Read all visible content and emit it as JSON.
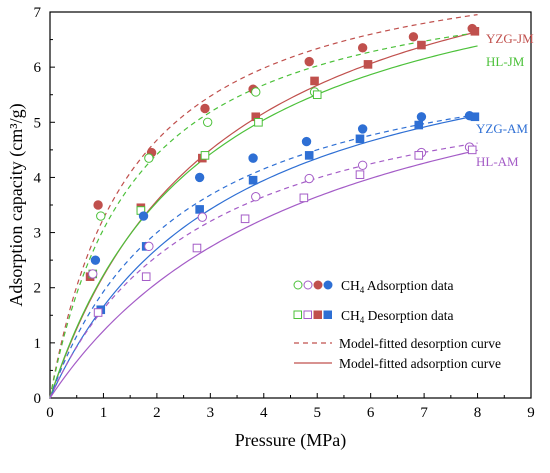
{
  "chart_data": {
    "type": "scatter",
    "xlabel": "Pressure (MPa)",
    "ylabel": "Adsorption capacity (cm³/g)",
    "xlim": [
      0,
      9
    ],
    "ylim": [
      0,
      7
    ],
    "xticks": [
      "0",
      "1",
      "2",
      "3",
      "4",
      "5",
      "6",
      "7",
      "8",
      "9"
    ],
    "yticks": [
      "0",
      "1",
      "2",
      "3",
      "4",
      "5",
      "6",
      "7"
    ],
    "grid": false,
    "legend_position": "bottom-right",
    "legend": [
      {
        "label_main": "CH",
        "label_sub": "4",
        "label_rest": " Adsorption data",
        "marker": "circle"
      },
      {
        "label_main": "CH",
        "label_sub": "4",
        "label_rest": " Desorption data",
        "marker": "square"
      },
      {
        "label_main": "Model-fitted desorption curve",
        "label_sub": "",
        "label_rest": "",
        "marker": "dashed-line"
      },
      {
        "label_main": "Model-fitted adsorption curve",
        "label_sub": "",
        "label_rest": "",
        "marker": "solid-line"
      }
    ],
    "series": [
      {
        "name": "YZG-JM",
        "color": "#c0504d",
        "adsorption_points": {
          "x": [
            0.9,
            1.9,
            2.9,
            3.8,
            4.85,
            5.85,
            6.8,
            7.9
          ],
          "y": [
            3.5,
            4.45,
            5.25,
            5.6,
            6.1,
            6.35,
            6.55,
            6.7
          ]
        },
        "desorption_points": {
          "x": [
            0.75,
            1.7,
            2.85,
            3.85,
            4.95,
            5.95,
            6.95,
            7.95
          ],
          "y": [
            2.2,
            3.45,
            4.35,
            5.1,
            5.75,
            6.05,
            6.4,
            6.65
          ]
        },
        "adsorption_fit": {
          "vl": 9.3,
          "pl": 3.2
        },
        "desorption_fit": {
          "vl": 8.3,
          "pl": 1.55
        }
      },
      {
        "name": "HL-JM",
        "color": "#4cc13a",
        "adsorption_points": {
          "x": [
            0.95,
            1.85,
            2.95,
            3.85,
            4.95
          ],
          "y": [
            3.3,
            4.35,
            5.0,
            5.55,
            5.55
          ]
        },
        "desorption_points": {
          "x": [
            0.8,
            1.7,
            2.9,
            3.9,
            5.0
          ],
          "y": [
            2.25,
            3.4,
            4.4,
            5.0,
            5.5
          ]
        },
        "adsorption_fit": {
          "vl": 8.7,
          "pl": 2.9
        },
        "desorption_fit": {
          "vl": 7.95,
          "pl": 1.6
        }
      },
      {
        "name": "YZG-AM",
        "color": "#2e6fd4",
        "adsorption_points": {
          "x": [
            0.85,
            1.75,
            2.8,
            3.8,
            4.8,
            5.85,
            6.95,
            7.85
          ],
          "y": [
            2.5,
            3.3,
            4.0,
            4.35,
            4.65,
            4.88,
            5.1,
            5.12
          ]
        },
        "desorption_points": {
          "x": [
            0.95,
            1.8,
            2.8,
            3.8,
            4.85,
            5.8,
            6.9,
            7.95
          ],
          "y": [
            1.6,
            2.75,
            3.42,
            3.95,
            4.4,
            4.7,
            4.95,
            5.1
          ]
        },
        "adsorption_fit": {
          "vl": 7.3,
          "pl": 3.4
        },
        "desorption_fit": {
          "vl": 6.75,
          "pl": 2.5
        }
      },
      {
        "name": "HL-AM",
        "color": "#a45cc7",
        "adsorption_points": {
          "x": [
            0.8,
            1.85,
            2.85,
            3.85,
            4.85,
            5.85,
            6.95,
            7.85
          ],
          "y": [
            2.25,
            2.75,
            3.28,
            3.65,
            3.98,
            4.22,
            4.45,
            4.55
          ]
        },
        "desorption_points": {
          "x": [
            0.9,
            1.8,
            2.75,
            3.65,
            4.75,
            5.8,
            6.9,
            7.9
          ],
          "y": [
            1.55,
            2.2,
            2.72,
            3.25,
            3.63,
            4.05,
            4.4,
            4.5
          ]
        },
        "adsorption_fit": {
          "vl": 7.3,
          "pl": 5.0
        },
        "desorption_fit": {
          "vl": 6.3,
          "pl": 2.9
        }
      }
    ]
  }
}
